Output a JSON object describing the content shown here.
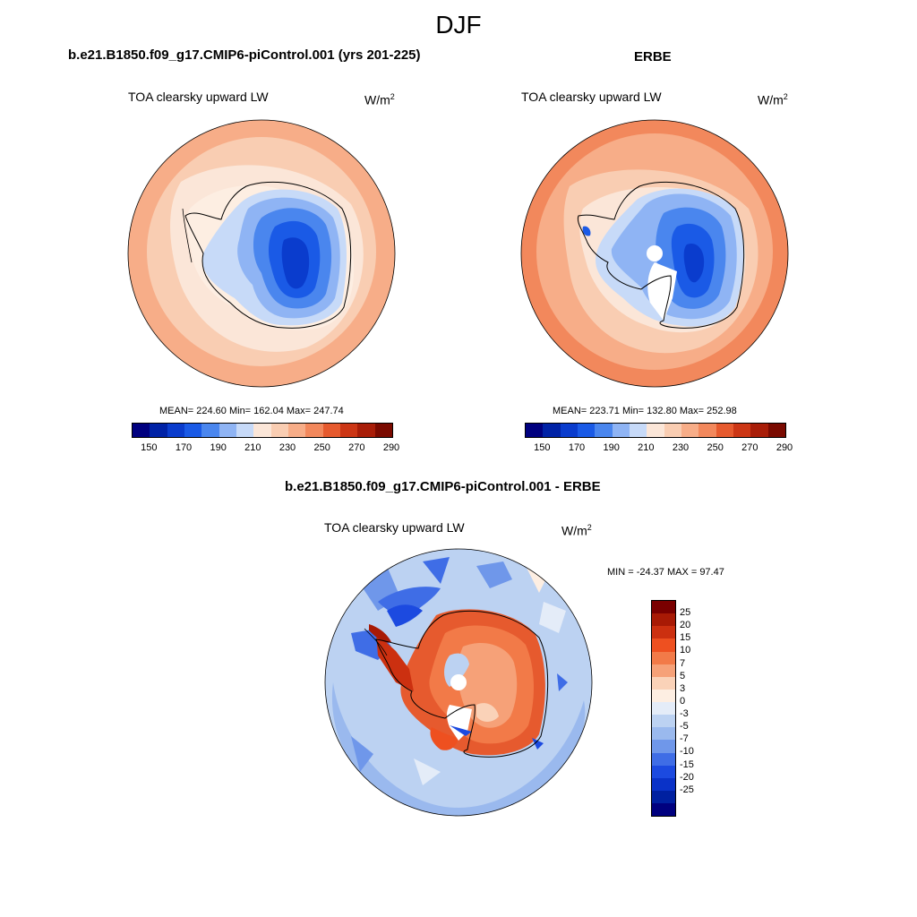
{
  "figure": {
    "season": "DJF"
  },
  "panels": [
    {
      "title": "b.e21.B1850.f09_g17.CMIP6-piControl.001 (yrs 201-225)",
      "variable": "TOA clearsky upward LW",
      "units_base": "W/m",
      "units_exp": "2",
      "stats": "MEAN= 224.60  Min= 162.04  Max= 247.74",
      "colorbar": {
        "colors": [
          "#00007f",
          "#0022a6",
          "#0a3ccd",
          "#1a5ae6",
          "#4a86ee",
          "#8fb4f4",
          "#c7daf8",
          "#fbe6d8",
          "#f9cdb2",
          "#f7ad88",
          "#f2885c",
          "#e65a2e",
          "#cc3615",
          "#a81d08",
          "#7a0a00"
        ],
        "ticks": [
          "150",
          "170",
          "190",
          "210",
          "230",
          "250",
          "270",
          "290"
        ]
      }
    },
    {
      "title": "ERBE",
      "variable": "TOA clearsky upward LW",
      "units_base": "W/m",
      "units_exp": "2",
      "stats": "MEAN= 223.71  Min= 132.80  Max= 252.98",
      "colorbar": {
        "colors": [
          "#00007f",
          "#0022a6",
          "#0a3ccd",
          "#1a5ae6",
          "#4a86ee",
          "#8fb4f4",
          "#c7daf8",
          "#fbe6d8",
          "#f9cdb2",
          "#f7ad88",
          "#f2885c",
          "#e65a2e",
          "#cc3615",
          "#a81d08",
          "#7a0a00"
        ],
        "ticks": [
          "150",
          "170",
          "190",
          "210",
          "230",
          "250",
          "270",
          "290"
        ]
      }
    },
    {
      "title": "b.e21.B1850.f09_g17.CMIP6-piControl.001 - ERBE",
      "variable": "TOA clearsky upward LW",
      "units_base": "W/m",
      "units_exp": "2",
      "stats": "MIN = -24.37 MAX =  97.47",
      "colorbar": {
        "colors": [
          "#7a0000",
          "#a81a05",
          "#cc3010",
          "#ee5020",
          "#f27a48",
          "#f6a178",
          "#fad2b8",
          "#fdeee2",
          "#e4ecf8",
          "#bcd2f2",
          "#9ab9ee",
          "#6f97ea",
          "#3f6de6",
          "#1c4ae0",
          "#0a32c8",
          "#0020a0",
          "#00007f"
        ],
        "ticks": [
          "25",
          "20",
          "15",
          "10",
          "7",
          "5",
          "3",
          "0",
          "-3",
          "-5",
          "-7",
          "-10",
          "-15",
          "-20",
          "-25"
        ]
      }
    }
  ]
}
